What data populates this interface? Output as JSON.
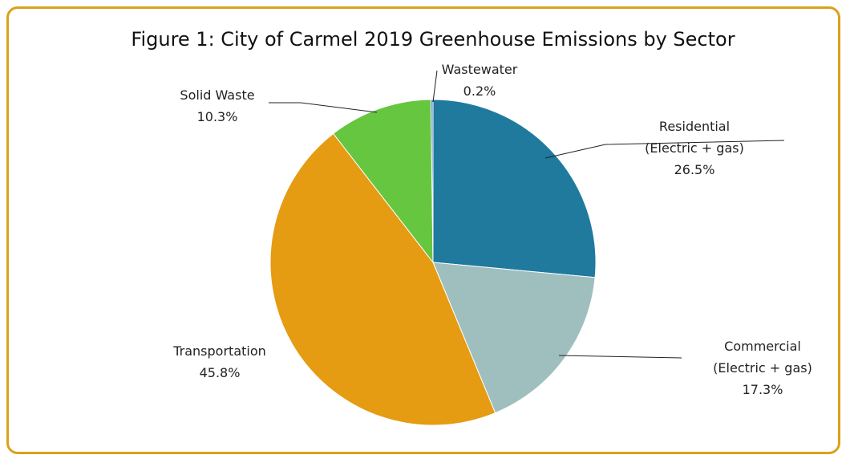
{
  "chart_data": {
    "type": "pie",
    "title": "Figure 1: City of Carmel 2019 Greenhouse Emissions by Sector",
    "slices": [
      {
        "label_lines": [
          "Residential",
          "(Electric + gas)",
          "26.5%"
        ],
        "value": 26.5,
        "color": "#1f7a9e"
      },
      {
        "label_lines": [
          "Commercial",
          "(Electric + gas)",
          "17.3%"
        ],
        "value": 17.3,
        "color": "#9fbfbf"
      },
      {
        "label_lines": [
          "Transportation",
          "45.8%"
        ],
        "value": 45.8,
        "color": "#e59b12"
      },
      {
        "label_lines": [
          "Solid Waste",
          "10.3%"
        ],
        "value": 10.3,
        "color": "#67c640"
      },
      {
        "label_lines": [
          "Wastewater",
          "0.2%"
        ],
        "value": 0.2,
        "color": "#4a7fd0"
      }
    ]
  },
  "frame": {
    "border_color": "#dca11a"
  }
}
